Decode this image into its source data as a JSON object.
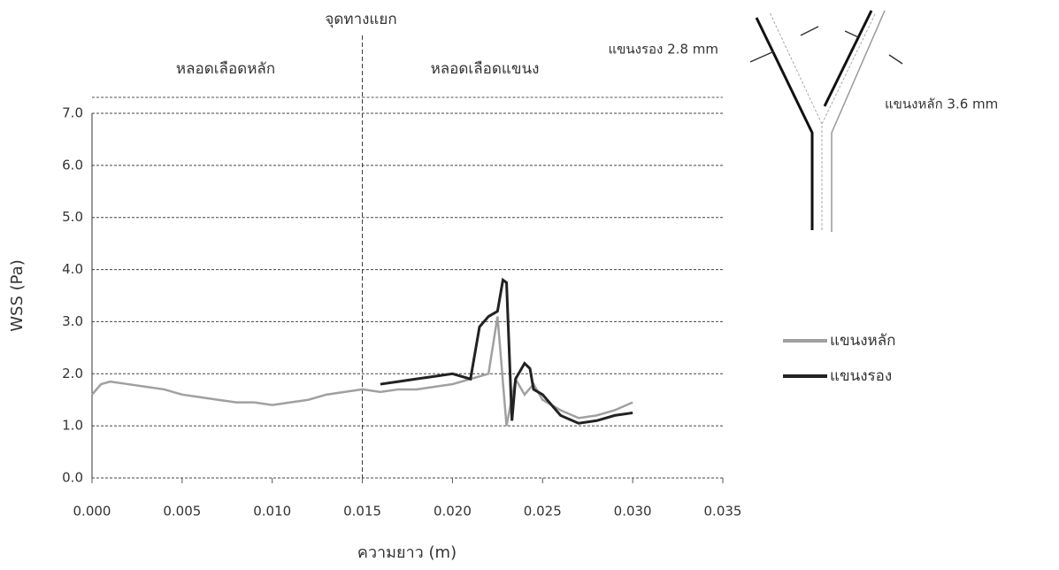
{
  "chart_data": {
    "type": "line",
    "x_label": "ความยาว (m)",
    "y_label": "WSS (Pa)",
    "annotations": [
      "จุดทางแยก",
      "หลอดเลือดหลัก",
      "หลอดเลือดแขนง",
      "แขนงรอง 2.8 mm",
      "แขนงหลัก 3.6 mm"
    ],
    "xlim": [
      0,
      0.035
    ],
    "xticks": [
      {
        "value": 0,
        "label": "0.000"
      },
      {
        "value": 0.005,
        "label": "0.005"
      },
      {
        "value": 0.01,
        "label": "0.010"
      },
      {
        "value": 0.015,
        "label": "0.015"
      },
      {
        "value": 0.02,
        "label": "0.020"
      },
      {
        "value": 0.025,
        "label": "0.025"
      },
      {
        "value": 0.03,
        "label": "0.030"
      },
      {
        "value": 0.035,
        "label": "0.035"
      }
    ],
    "ylim": [
      0,
      7
    ],
    "yticks": [
      {
        "value": 0,
        "label": "0.0"
      },
      {
        "value": 1,
        "label": "1.0"
      },
      {
        "value": 2,
        "label": "2.0"
      },
      {
        "value": 3,
        "label": "3.0"
      },
      {
        "value": 4,
        "label": "4.0"
      },
      {
        "value": 5,
        "label": "5.0"
      },
      {
        "value": 6,
        "label": "6.0"
      },
      {
        "value": 7,
        "label": "7.0"
      }
    ],
    "grid": true,
    "series": [
      {
        "name": "แขนงหลัก",
        "color": "#a0a0a0",
        "x": [
          0,
          0.0005,
          0.001,
          0.002,
          0.003,
          0.004,
          0.005,
          0.006,
          0.007,
          0.008,
          0.009,
          0.01,
          0.011,
          0.012,
          0.013,
          0.014,
          0.015,
          0.016,
          0.017,
          0.018,
          0.019,
          0.02,
          0.021,
          0.022,
          0.0225,
          0.023,
          0.0235,
          0.024,
          0.0245,
          0.025,
          0.026,
          0.027,
          0.028,
          0.029,
          0.03
        ],
        "values": [
          1.6,
          1.8,
          1.85,
          1.8,
          1.75,
          1.7,
          1.6,
          1.55,
          1.5,
          1.45,
          1.45,
          1.4,
          1.45,
          1.5,
          1.6,
          1.65,
          1.7,
          1.65,
          1.7,
          1.7,
          1.75,
          1.8,
          1.9,
          2.0,
          3.1,
          1.0,
          1.9,
          1.6,
          1.8,
          1.5,
          1.3,
          1.15,
          1.2,
          1.3,
          1.45
        ]
      },
      {
        "name": "แขนงรอง",
        "color": "#222222",
        "x": [
          0.016,
          0.017,
          0.018,
          0.019,
          0.02,
          0.021,
          0.0215,
          0.022,
          0.0225,
          0.0228,
          0.023,
          0.0233,
          0.0235,
          0.024,
          0.0243,
          0.0245,
          0.025,
          0.026,
          0.027,
          0.028,
          0.029,
          0.03
        ],
        "values": [
          1.8,
          1.85,
          1.9,
          1.95,
          2.0,
          1.9,
          2.9,
          3.1,
          3.2,
          3.8,
          3.75,
          1.1,
          1.9,
          2.2,
          2.1,
          1.7,
          1.6,
          1.2,
          1.05,
          1.1,
          1.2,
          1.25
        ]
      }
    ]
  }
}
